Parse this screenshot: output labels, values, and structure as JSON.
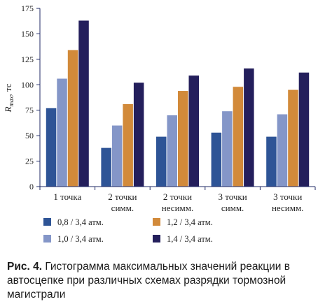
{
  "chart_data": {
    "type": "bar",
    "categories": [
      [
        "1 точка"
      ],
      [
        "2 точки",
        "симм."
      ],
      [
        "2 точки",
        "несимм."
      ],
      [
        "3 точки",
        "симм."
      ],
      [
        "3 точки",
        "несимм."
      ]
    ],
    "series": [
      {
        "name": "0,8 / 3,4 атм.",
        "color": "#2e5496",
        "values": [
          77,
          38,
          49,
          53,
          49
        ]
      },
      {
        "name": "1,0 / 3,4 атм.",
        "color": "#8496c8",
        "values": [
          106,
          60,
          70,
          74,
          71
        ]
      },
      {
        "name": "1,2 / 3,4 атм.",
        "color": "#d28a3a",
        "values": [
          134,
          81,
          94,
          98,
          95
        ]
      },
      {
        "name": "1,4 / 3,4 атм.",
        "color": "#241f5c",
        "values": [
          163,
          102,
          109,
          116,
          112
        ]
      }
    ],
    "y_ticks": [
      "0",
      "25",
      "50",
      "75",
      "100",
      "125",
      "150",
      "175"
    ],
    "ylim": [
      0,
      175
    ],
    "ylabel": {
      "main": "R",
      "subscript": "max",
      "unit": ", тс"
    },
    "xlabel": "",
    "title": "",
    "grid": false,
    "legend_position": "bottom",
    "axis_color": "#1f2a66"
  },
  "caption": {
    "number": "Рис. 4.",
    "text": "Гистограмма максимальных значений реакции в автосцепке при различных схемах разрядки тормозной магистрали"
  }
}
